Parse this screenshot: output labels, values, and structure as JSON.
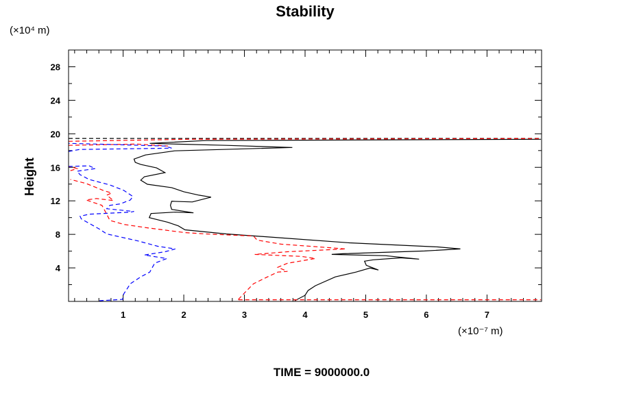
{
  "chart_data": {
    "type": "line",
    "title": "Stability",
    "ylabel": "Height",
    "xlabel": "",
    "y_unit": "(×10⁴ m)",
    "x_unit": "(×10⁻⁷ m)",
    "footer": "TIME = 9000000.0",
    "xlim": [
      0.1,
      7.9
    ],
    "ylim": [
      0,
      30
    ],
    "xticks": [
      1,
      2,
      3,
      4,
      5,
      6,
      7
    ],
    "yticks": [
      4,
      8,
      12,
      16,
      20,
      24,
      28
    ],
    "grid": false,
    "series": [
      {
        "name": "black-solid",
        "color": "#000000",
        "dash": false,
        "segments": [
          [
            [
              3.83,
              0.08
            ],
            [
              4.0,
              0.73
            ],
            [
              4.05,
              1.3
            ],
            [
              4.17,
              1.87
            ],
            [
              4.5,
              2.93
            ],
            [
              4.84,
              3.5
            ],
            [
              5.07,
              3.98
            ],
            [
              5.21,
              3.74
            ],
            [
              5.01,
              4.31
            ],
            [
              4.98,
              4.8
            ],
            [
              5.12,
              4.96
            ],
            [
              5.58,
              5.2
            ],
            [
              5.88,
              5.04
            ],
            [
              5.33,
              5.45
            ],
            [
              4.44,
              5.61
            ],
            [
              4.62,
              5.69
            ],
            [
              5.97,
              6.02
            ],
            [
              6.56,
              6.26
            ],
            [
              6.19,
              6.5
            ],
            [
              4.73,
              6.99
            ],
            [
              3.49,
              7.64
            ],
            [
              2.7,
              8.05
            ],
            [
              2.02,
              8.54
            ],
            [
              1.91,
              9.02
            ],
            [
              1.74,
              9.43
            ],
            [
              1.43,
              10.0
            ],
            [
              1.46,
              10.49
            ],
            [
              1.85,
              10.65
            ],
            [
              2.16,
              10.57
            ],
            [
              1.8,
              10.98
            ],
            [
              1.78,
              11.46
            ],
            [
              1.8,
              11.95
            ],
            [
              2.14,
              11.87
            ],
            [
              2.45,
              12.44
            ],
            [
              2.25,
              12.68
            ],
            [
              2.0,
              13.09
            ],
            [
              1.8,
              13.58
            ],
            [
              1.4,
              13.98
            ],
            [
              1.29,
              14.47
            ],
            [
              1.35,
              14.88
            ],
            [
              1.69,
              15.37
            ],
            [
              1.55,
              15.93
            ],
            [
              1.29,
              16.34
            ],
            [
              1.2,
              16.59
            ],
            [
              1.18,
              16.99
            ],
            [
              1.37,
              17.48
            ],
            [
              1.85,
              17.97
            ],
            [
              3.79,
              18.37
            ],
            [
              2.7,
              18.62
            ],
            [
              1.44,
              18.86
            ],
            [
              2.36,
              19.19
            ],
            [
              7.89,
              19.35
            ]
          ]
        ]
      },
      {
        "name": "black-dashed",
        "color": "#000000",
        "dash": true,
        "segments": [
          [
            [
              0.1,
              19.45
            ],
            [
              7.89,
              19.45
            ]
          ]
        ]
      },
      {
        "name": "red-dashed",
        "color": "#ff0000",
        "dash": true,
        "segments": [
          [
            [
              2.9,
              0.24
            ],
            [
              3.04,
              1.3
            ],
            [
              3.15,
              2.11
            ],
            [
              3.38,
              2.93
            ],
            [
              3.55,
              3.5
            ],
            [
              3.71,
              3.58
            ],
            [
              3.55,
              4.07
            ],
            [
              3.71,
              4.55
            ],
            [
              4.17,
              5.12
            ],
            [
              3.94,
              5.37
            ],
            [
              3.17,
              5.61
            ],
            [
              3.71,
              5.93
            ],
            [
              4.67,
              6.26
            ],
            [
              4.39,
              6.42
            ],
            [
              3.6,
              6.83
            ],
            [
              3.21,
              7.32
            ],
            [
              3.15,
              7.8
            ],
            [
              2.36,
              8.05
            ],
            [
              2.02,
              8.21
            ],
            [
              1.4,
              8.78
            ],
            [
              1.01,
              9.19
            ],
            [
              0.78,
              9.67
            ],
            [
              0.73,
              10.41
            ],
            [
              0.65,
              11.46
            ],
            [
              0.39,
              12.11
            ],
            [
              0.56,
              12.28
            ],
            [
              0.84,
              12.03
            ],
            [
              0.73,
              12.68
            ],
            [
              0.81,
              12.93
            ],
            [
              0.67,
              13.25
            ],
            [
              0.39,
              14.07
            ],
            [
              0.13,
              14.55
            ]
          ],
          [
            [
              0.13,
              15.6
            ],
            [
              0.24,
              15.85
            ],
            [
              0.16,
              16.02
            ],
            [
              0.1,
              16.1
            ]
          ],
          [
            [
              0.1,
              18.62
            ],
            [
              1.23,
              18.78
            ],
            [
              1.74,
              18.54
            ]
          ],
          [
            [
              0.1,
              19.1
            ],
            [
              2.08,
              19.35
            ],
            [
              7.89,
              19.43
            ]
          ],
          [
            [
              2.9,
              0.2
            ],
            [
              7.89,
              0.2
            ]
          ]
        ]
      },
      {
        "name": "blue-dashed",
        "color": "#0000ff",
        "dash": true,
        "segments": [
          [
            [
              0.61,
              0.08
            ],
            [
              0.99,
              0.24
            ],
            [
              1.01,
              0.89
            ],
            [
              1.12,
              2.11
            ],
            [
              1.29,
              2.93
            ],
            [
              1.44,
              3.5
            ],
            [
              1.52,
              4.55
            ],
            [
              1.72,
              5.12
            ],
            [
              1.35,
              5.53
            ],
            [
              1.69,
              5.93
            ],
            [
              1.86,
              6.26
            ],
            [
              1.57,
              6.58
            ],
            [
              1.23,
              7.24
            ],
            [
              0.73,
              8.05
            ],
            [
              0.61,
              8.62
            ],
            [
              0.31,
              9.84
            ],
            [
              0.29,
              10.16
            ],
            [
              0.44,
              10.41
            ],
            [
              1.12,
              10.65
            ],
            [
              1.18,
              10.73
            ],
            [
              0.73,
              11.06
            ],
            [
              0.78,
              11.46
            ],
            [
              0.95,
              11.63
            ],
            [
              1.12,
              12.11
            ],
            [
              1.16,
              12.52
            ],
            [
              1.01,
              13.25
            ],
            [
              0.78,
              13.9
            ],
            [
              0.44,
              14.55
            ],
            [
              0.29,
              15.12
            ],
            [
              0.24,
              15.53
            ],
            [
              0.54,
              15.85
            ],
            [
              0.44,
              16.18
            ],
            [
              0.1,
              16.1
            ]
          ],
          [
            [
              0.1,
              17.89
            ],
            [
              0.28,
              18.13
            ],
            [
              1.8,
              18.29
            ],
            [
              1.69,
              18.54
            ],
            [
              0.56,
              18.78
            ],
            [
              0.1,
              18.86
            ]
          ]
        ]
      }
    ]
  }
}
